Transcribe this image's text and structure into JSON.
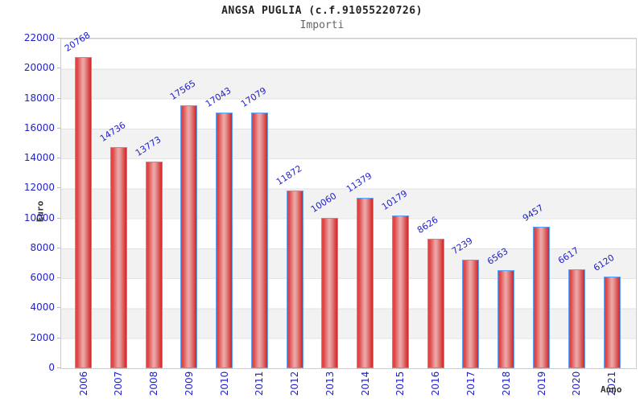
{
  "header": {
    "title": "ANGSA PUGLIA (c.f.91055220726)",
    "subtitle": "Importi"
  },
  "chart_data": {
    "type": "bar",
    "title": "ANGSA PUGLIA (c.f.91055220726)",
    "subtitle": "Importi",
    "xlabel": "Anno",
    "ylabel": "Euro",
    "categories": [
      "2006",
      "2007",
      "2008",
      "2009",
      "2010",
      "2011",
      "2012",
      "2013",
      "2014",
      "2015",
      "2016",
      "2017",
      "2018",
      "2019",
      "2020",
      "2021"
    ],
    "values": [
      20768,
      14736,
      13773,
      17565,
      17043,
      17079,
      11872,
      10060,
      11379,
      10179,
      8626,
      7239,
      6563,
      9457,
      6617,
      6120
    ],
    "ylim": [
      0,
      22000
    ],
    "ytick_step": 2000,
    "grid": "horizontal-bands",
    "legend_position": "none",
    "colors": {
      "label_blue": "#2222cc",
      "bar_fill_edge": "#d22424",
      "bar_fill_center": "#efa8a8",
      "bar_border": "#5ba3f5",
      "band_gray": "#f2f2f2",
      "plot_border": "#cccccc",
      "title_color": "#222222",
      "subtitle_color": "#666666"
    }
  }
}
